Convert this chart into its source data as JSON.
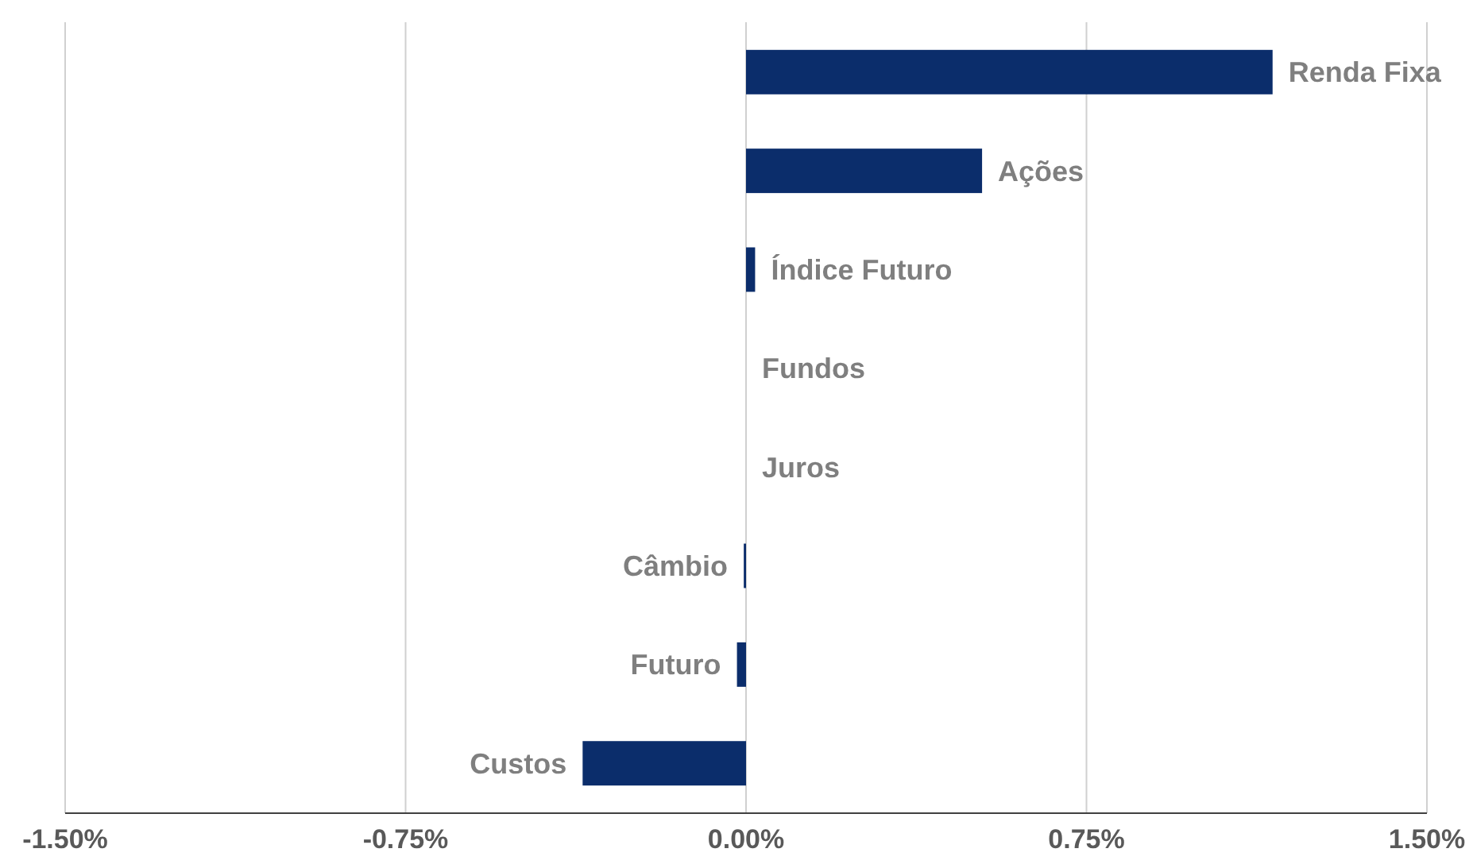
{
  "chart_data": {
    "type": "bar",
    "orientation": "horizontal",
    "categories": [
      "Renda Fixa",
      "Ações",
      "Índice Futuro",
      "Fundos",
      "Juros",
      "Câmbio",
      "Futuro",
      "Custos"
    ],
    "values": [
      1.16,
      0.52,
      0.02,
      0,
      0,
      -0.005,
      -0.02,
      -0.36
    ],
    "color": "#0b2d6b",
    "xlim": [
      -1.5,
      1.5
    ],
    "xticks": [
      {
        "value": -1.5,
        "label": "-1.50%"
      },
      {
        "value": -0.75,
        "label": "-0.75%"
      },
      {
        "value": 0,
        "label": "0.00%"
      },
      {
        "value": 0.75,
        "label": "0.75%"
      },
      {
        "value": 1.5,
        "label": "1.50%"
      }
    ],
    "grid": "x"
  }
}
